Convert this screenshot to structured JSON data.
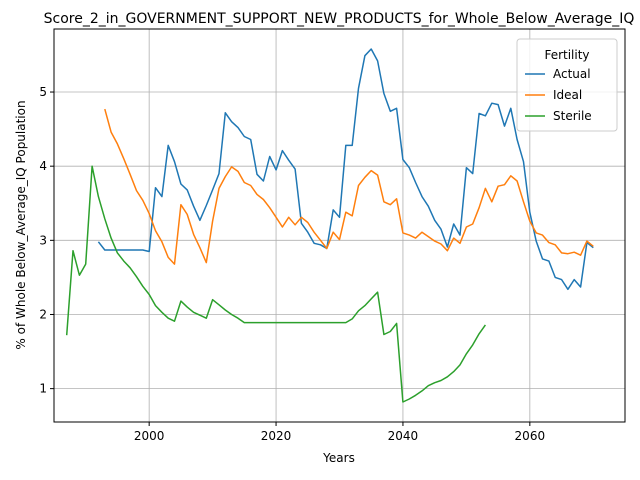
{
  "chart_data": {
    "type": "line",
    "title": "Score_2_in_GOVERNMENT_SUPPORT_NEW_PRODUCTS_for_Whole_Below_Average_IQ",
    "xlabel": "Years",
    "ylabel": "% of Whole Below_Average_IQ Population",
    "xlim": [
      1985,
      2075
    ],
    "ylim": [
      0.55,
      5.85
    ],
    "xticks": [
      2000,
      2020,
      2040,
      2060
    ],
    "yticks": [
      1,
      2,
      3,
      4,
      5
    ],
    "grid": true,
    "legend": {
      "title": "Fertility",
      "placement": "top-right"
    },
    "series": [
      {
        "name": "Actual",
        "color": "#1f77b4",
        "x": [
          1992,
          1993,
          1994,
          1995,
          1996,
          1997,
          1998,
          1999,
          2000,
          2001,
          2002,
          2003,
          2004,
          2005,
          2006,
          2007,
          2008,
          2009,
          2010,
          2011,
          2012,
          2013,
          2014,
          2015,
          2016,
          2017,
          2018,
          2019,
          2020,
          2021,
          2022,
          2023,
          2024,
          2025,
          2026,
          2027,
          2028,
          2029,
          2030,
          2031,
          2032,
          2033,
          2034,
          2035,
          2036,
          2037,
          2038,
          2039,
          2040,
          2041,
          2042,
          2043,
          2044,
          2045,
          2046,
          2047,
          2048,
          2049,
          2050,
          2051,
          2052,
          2053,
          2054,
          2055,
          2056,
          2057,
          2058,
          2059,
          2060,
          2061,
          2062,
          2063,
          2064,
          2065,
          2066,
          2067,
          2068,
          2069,
          2070
        ],
        "y": [
          2.98,
          2.87,
          2.87,
          2.87,
          2.87,
          2.87,
          2.87,
          2.87,
          2.85,
          3.71,
          3.59,
          4.28,
          4.06,
          3.76,
          3.68,
          3.46,
          3.27,
          3.47,
          3.68,
          3.9,
          4.72,
          4.6,
          4.52,
          4.4,
          4.36,
          3.89,
          3.8,
          4.13,
          3.95,
          4.21,
          4.08,
          3.96,
          3.23,
          3.11,
          2.96,
          2.94,
          2.89,
          3.41,
          3.31,
          4.28,
          4.28,
          5.05,
          5.49,
          5.58,
          5.42,
          4.98,
          4.74,
          4.78,
          4.09,
          3.98,
          3.78,
          3.59,
          3.46,
          3.27,
          3.15,
          2.91,
          3.22,
          3.07,
          3.98,
          3.9,
          4.71,
          4.68,
          4.85,
          4.83,
          4.54,
          4.78,
          4.36,
          4.06,
          3.38,
          2.99,
          2.75,
          2.72,
          2.5,
          2.47,
          2.34,
          2.47,
          2.37,
          2.97,
          2.9
        ]
      },
      {
        "name": "Ideal",
        "color": "#ff7f0e",
        "x": [
          1993,
          1994,
          1995,
          1996,
          1997,
          1998,
          1999,
          2000,
          2001,
          2002,
          2003,
          2004,
          2005,
          2006,
          2007,
          2008,
          2009,
          2010,
          2011,
          2012,
          2013,
          2014,
          2015,
          2016,
          2017,
          2018,
          2019,
          2020,
          2021,
          2022,
          2023,
          2024,
          2025,
          2026,
          2027,
          2028,
          2029,
          2030,
          2031,
          2032,
          2033,
          2034,
          2035,
          2036,
          2037,
          2038,
          2039,
          2040,
          2041,
          2042,
          2043,
          2044,
          2045,
          2046,
          2047,
          2048,
          2049,
          2050,
          2051,
          2052,
          2053,
          2054,
          2055,
          2056,
          2057,
          2058,
          2059,
          2060,
          2061,
          2062,
          2063,
          2064,
          2065,
          2066,
          2067,
          2068,
          2069,
          2070
        ],
        "y": [
          4.77,
          4.46,
          4.3,
          4.1,
          3.89,
          3.67,
          3.54,
          3.36,
          3.13,
          2.98,
          2.77,
          2.68,
          3.48,
          3.35,
          3.08,
          2.9,
          2.7,
          3.26,
          3.7,
          3.86,
          3.99,
          3.93,
          3.78,
          3.74,
          3.62,
          3.55,
          3.44,
          3.31,
          3.18,
          3.31,
          3.21,
          3.31,
          3.24,
          3.11,
          3.0,
          2.89,
          3.11,
          3.01,
          3.38,
          3.33,
          3.74,
          3.85,
          3.94,
          3.88,
          3.52,
          3.48,
          3.56,
          3.1,
          3.07,
          3.03,
          3.11,
          3.05,
          2.99,
          2.95,
          2.86,
          3.03,
          2.96,
          3.18,
          3.22,
          3.44,
          3.7,
          3.52,
          3.73,
          3.75,
          3.87,
          3.8,
          3.52,
          3.26,
          3.1,
          3.07,
          2.97,
          2.94,
          2.83,
          2.82,
          2.84,
          2.8,
          2.99,
          2.92
        ]
      },
      {
        "name": "Sterile",
        "color": "#2ca02c",
        "x": [
          1987,
          1988,
          1989,
          1990,
          1991,
          1992,
          1993,
          1994,
          1995,
          1996,
          1997,
          1998,
          1999,
          2000,
          2001,
          2002,
          2003,
          2004,
          2005,
          2006,
          2007,
          2008,
          2009,
          2010,
          2011,
          2012,
          2013,
          2014,
          2015,
          2016,
          2017,
          2018,
          2019,
          2020,
          2021,
          2022,
          2023,
          2024,
          2025,
          2026,
          2027,
          2028,
          2029,
          2030,
          2031,
          2032,
          2033,
          2034,
          2035,
          2036,
          2037,
          2038,
          2039,
          2040,
          2041,
          2042,
          2043,
          2044,
          2045,
          2046,
          2047,
          2048,
          2049,
          2050,
          2051,
          2052,
          2053
        ],
        "y": [
          1.72,
          2.86,
          2.53,
          2.68,
          4.0,
          3.59,
          3.29,
          3.03,
          2.83,
          2.72,
          2.63,
          2.51,
          2.38,
          2.27,
          2.12,
          2.03,
          1.95,
          1.91,
          2.18,
          2.1,
          2.03,
          1.99,
          1.95,
          2.2,
          2.13,
          2.06,
          2.0,
          1.95,
          1.89,
          1.89,
          1.89,
          1.89,
          1.89,
          1.89,
          1.89,
          1.89,
          1.89,
          1.89,
          1.89,
          1.89,
          1.89,
          1.89,
          1.89,
          1.89,
          1.89,
          1.94,
          2.05,
          2.12,
          2.21,
          2.3,
          1.73,
          1.77,
          1.88,
          0.82,
          0.86,
          0.91,
          0.97,
          1.04,
          1.08,
          1.11,
          1.16,
          1.23,
          1.32,
          1.47,
          1.59,
          1.74,
          1.86
        ]
      }
    ]
  }
}
